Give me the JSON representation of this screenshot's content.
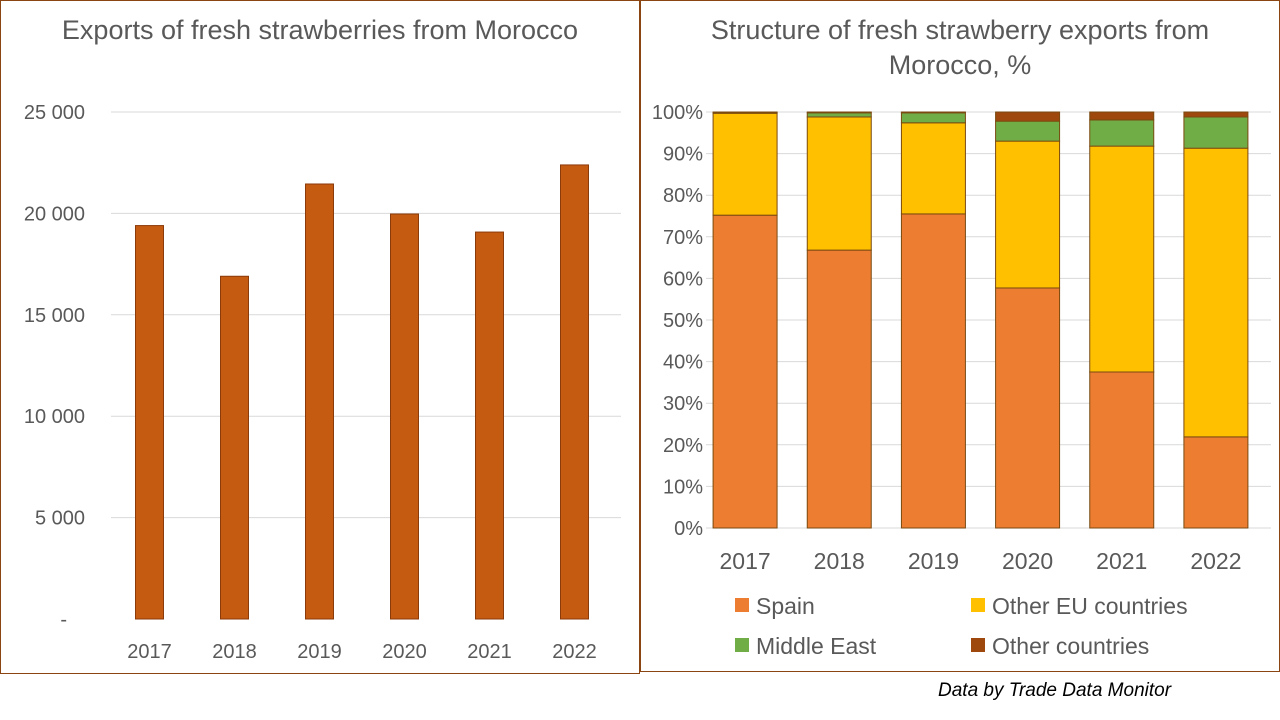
{
  "chart_data": [
    {
      "type": "bar",
      "title": "Exports of fresh strawberries from Morocco",
      "categories": [
        "2017",
        "2018",
        "2019",
        "2020",
        "2021",
        "2022"
      ],
      "values": [
        19400,
        16900,
        21450,
        19970,
        19080,
        22390
      ],
      "ylim": [
        0,
        25000
      ],
      "yticks": [
        "-",
        "5 000",
        "10 000",
        "15 000",
        "20 000",
        "25 000"
      ],
      "grid": true,
      "colors": {
        "bar": "#C55A11"
      }
    },
    {
      "type": "bar",
      "stacked": true,
      "title": "Structure of fresh strawberry exports from Morocco, %",
      "categories": [
        "2017",
        "2018",
        "2019",
        "2020",
        "2021",
        "2022"
      ],
      "series": [
        {
          "name": "Spain",
          "color": "#ED7D31",
          "values": [
            75.2,
            66.8,
            75.5,
            57.7,
            37.5,
            21.9
          ]
        },
        {
          "name": "Other EU countries",
          "color": "#FFC000",
          "values": [
            24.5,
            32.0,
            21.9,
            35.3,
            54.3,
            69.4
          ]
        },
        {
          "name": "Middle East",
          "color": "#70AD47",
          "values": [
            0.1,
            1.0,
            2.4,
            4.8,
            6.3,
            7.5
          ]
        },
        {
          "name": "Other countries",
          "color": "#9E480E",
          "values": [
            0.2,
            0.2,
            0.2,
            2.2,
            1.9,
            1.2
          ]
        }
      ],
      "ylim": [
        0,
        100
      ],
      "yticks": [
        "0%",
        "10%",
        "20%",
        "30%",
        "40%",
        "50%",
        "60%",
        "70%",
        "80%",
        "90%",
        "100%"
      ],
      "grid": true,
      "legend": "bottom"
    }
  ],
  "source": "Data by Trade Data Monitor"
}
